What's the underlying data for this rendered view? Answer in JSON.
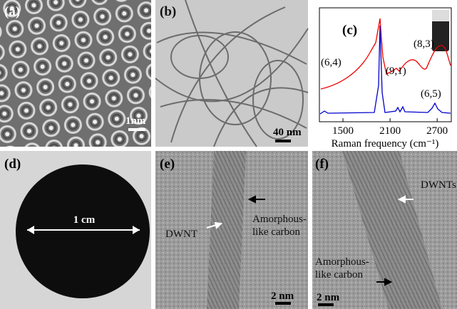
{
  "panels": [
    {
      "label": "(a)",
      "scale_bar": "1nm"
    },
    {
      "label": "(b)",
      "scale_bar": "40 nm"
    },
    {
      "label": "(c)",
      "chart": {
        "x_label": "Raman frequency (cm⁻¹)",
        "xlim": [
          1200,
          2880
        ],
        "xticks": [
          1500,
          2100,
          2700
        ],
        "peak_labels": [
          "(6,4)",
          "(9,1)",
          "(8,3)",
          "(6,5)"
        ]
      }
    },
    {
      "label": "(d)",
      "dimension": "1 cm"
    },
    {
      "label": "(e)",
      "annotations": [
        "DWNT",
        "Amorphous-",
        "like carbon"
      ],
      "scale_bar": "2 nm"
    },
    {
      "label": "(f)",
      "annotations": [
        "DWNTs",
        "Amorphous-",
        "like carbon"
      ],
      "scale_bar": "2 nm"
    }
  ]
}
